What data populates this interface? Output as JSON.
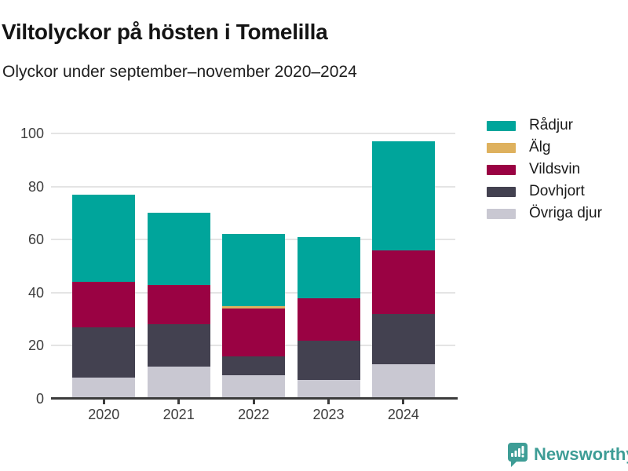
{
  "header": {
    "title": "Viltolyckor på hösten i Tomelilla",
    "subtitle": "Olyckor under september–november 2020–2024"
  },
  "chart_data": {
    "type": "bar",
    "stacked": true,
    "title": "Viltolyckor på hösten i Tomelilla",
    "subtitle": "Olyckor under september–november 2020–2024",
    "categories": [
      "2020",
      "2021",
      "2022",
      "2023",
      "2024"
    ],
    "series": [
      {
        "name": "Rådjur",
        "color": "#00a59b",
        "values": [
          33,
          27,
          27,
          23,
          41
        ]
      },
      {
        "name": "Älg",
        "color": "#deb15e",
        "values": [
          0,
          0,
          1,
          0,
          0
        ]
      },
      {
        "name": "Vildsvin",
        "color": "#9a0243",
        "values": [
          17,
          15,
          18,
          16,
          24
        ]
      },
      {
        "name": "Dovhjort",
        "color": "#434150",
        "values": [
          19,
          16,
          7,
          15,
          19
        ]
      },
      {
        "name": "Övriga djur",
        "color": "#c9c8d2",
        "values": [
          8,
          12,
          9,
          7,
          13
        ]
      }
    ],
    "stack_order_bottom_to_top": [
      "Övriga djur",
      "Dovhjort",
      "Vildsvin",
      "Älg",
      "Rådjur"
    ],
    "xlabel": "",
    "ylabel": "",
    "ylim": [
      0,
      100
    ],
    "y_ticks": [
      0,
      20,
      40,
      60,
      80,
      100
    ],
    "grid": true,
    "legend_position": "right"
  },
  "legend": {
    "items": [
      "Rådjur",
      "Älg",
      "Vildsvin",
      "Dovhjort",
      "Övriga djur"
    ]
  },
  "footer": {
    "brand": "Newsworthy",
    "brand_color": "#3e9d96"
  },
  "colors": {
    "axis": "#3c3c3c",
    "gridline": "#e4e4e4",
    "tick_label": "#3d3d3d",
    "title_text": "#141414"
  }
}
